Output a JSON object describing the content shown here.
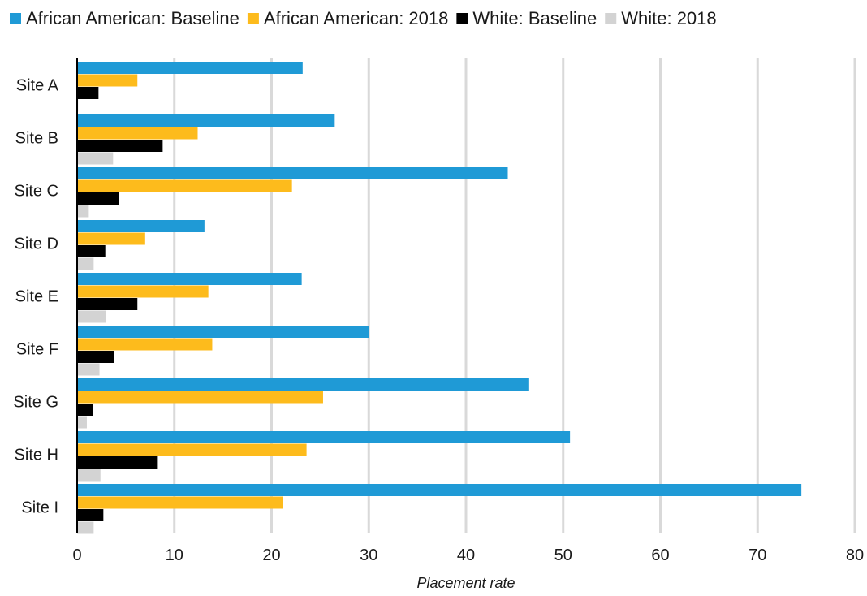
{
  "chart_data": {
    "type": "bar",
    "orientation": "horizontal",
    "categories": [
      "Site A",
      "Site B",
      "Site C",
      "Site D",
      "Site E",
      "Site F",
      "Site G",
      "Site H",
      "Site I"
    ],
    "series": [
      {
        "name": "African American: Baseline",
        "color": "#1f9ad6",
        "values": [
          23.2,
          26.5,
          44.3,
          13.1,
          23.1,
          30.0,
          46.5,
          50.7,
          74.5
        ]
      },
      {
        "name": "African American: 2018",
        "color": "#fdbb1c",
        "values": [
          6.2,
          12.4,
          22.1,
          7.0,
          13.5,
          13.9,
          25.3,
          23.6,
          21.2
        ]
      },
      {
        "name": "White: Baseline",
        "color": "#000000",
        "values": [
          2.2,
          8.8,
          4.3,
          2.9,
          6.2,
          3.8,
          1.6,
          8.3,
          2.7
        ]
      },
      {
        "name": "White: 2018",
        "color": "#d3d3d3",
        "values": [
          0.1,
          3.7,
          1.2,
          1.7,
          3.0,
          2.3,
          1.0,
          2.4,
          1.7
        ]
      }
    ],
    "xlabel": "Placement rate",
    "ylabel": "",
    "xlim": [
      0,
      80
    ],
    "xticks": [
      "0",
      "10",
      "20",
      "30",
      "40",
      "50",
      "60",
      "70",
      "80"
    ],
    "grid": true,
    "legend_position": "top"
  }
}
